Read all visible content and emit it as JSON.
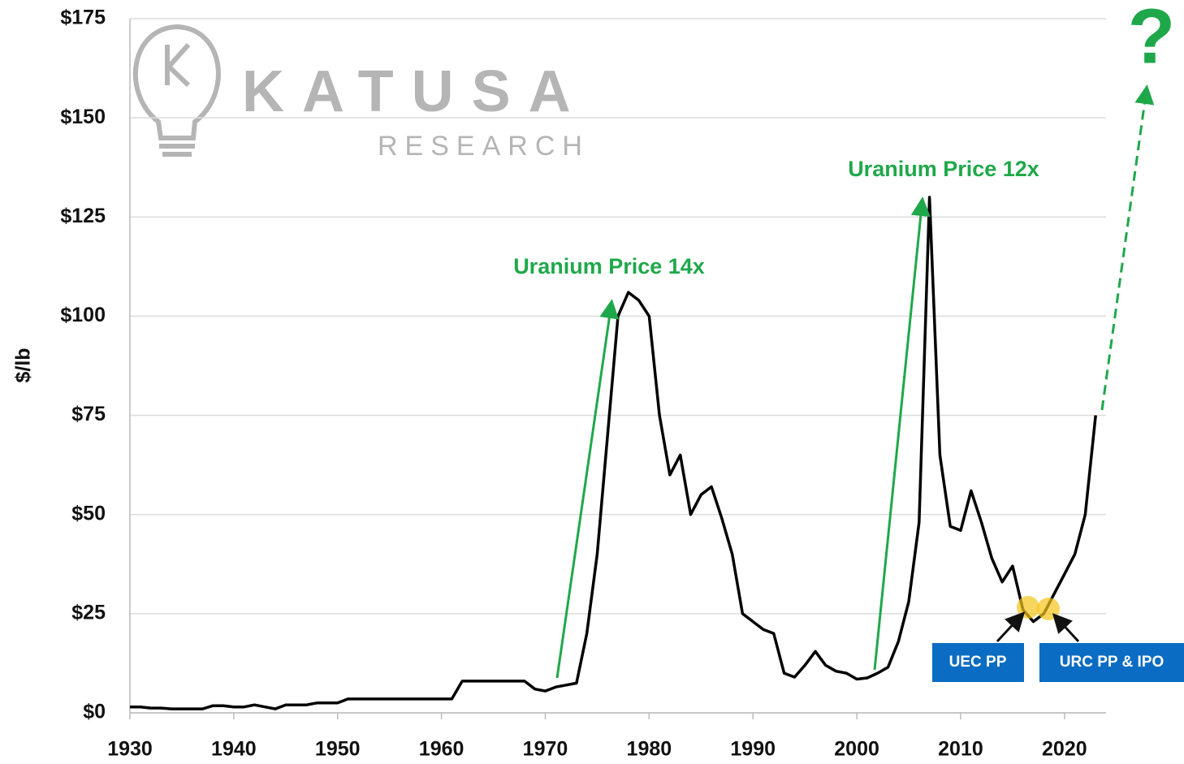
{
  "chart_data": {
    "type": "line",
    "y_label": "$/lb",
    "watermark": [
      "KATUSA",
      "RESEARCH"
    ],
    "annotations": [
      "Uranium Price 14x",
      "Uranium Price 12x",
      "?",
      "UEC PP",
      "URC PP & IPO"
    ],
    "color": "#000000",
    "grid": true,
    "xlim": [
      1930,
      2024
    ],
    "xticks": [
      1930,
      1940,
      1950,
      1960,
      1970,
      1980,
      1990,
      2000,
      2010,
      2020
    ],
    "ylim": [
      0,
      175
    ],
    "yticks": [
      {
        "value": 0,
        "label": "$0"
      },
      {
        "value": 25,
        "label": "$25"
      },
      {
        "value": 50,
        "label": "$50"
      },
      {
        "value": 75,
        "label": "$75"
      },
      {
        "value": 100,
        "label": "$100"
      },
      {
        "value": 125,
        "label": "$125"
      },
      {
        "value": 150,
        "label": "$150"
      },
      {
        "value": 175,
        "label": "$175"
      }
    ],
    "x": [
      1930,
      1931,
      1932,
      1933,
      1934,
      1935,
      1936,
      1937,
      1938,
      1939,
      1940,
      1941,
      1942,
      1943,
      1944,
      1945,
      1946,
      1947,
      1948,
      1949,
      1950,
      1951,
      1952,
      1953,
      1954,
      1955,
      1956,
      1957,
      1958,
      1959,
      1960,
      1961,
      1962,
      1963,
      1964,
      1965,
      1966,
      1967,
      1968,
      1969,
      1970,
      1971,
      1972,
      1973,
      1974,
      1975,
      1976,
      1977,
      1978,
      1979,
      1980,
      1981,
      1982,
      1983,
      1984,
      1985,
      1986,
      1987,
      1988,
      1989,
      1990,
      1991,
      1992,
      1993,
      1994,
      1995,
      1996,
      1997,
      1998,
      1999,
      2000,
      2001,
      2002,
      2003,
      2004,
      2005,
      2006,
      2007,
      2008,
      2009,
      2010,
      2011,
      2012,
      2013,
      2014,
      2015,
      2016,
      2017,
      2018,
      2019,
      2020,
      2021,
      2022,
      2023
    ],
    "values": [
      1.5,
      1.5,
      1.2,
      1.2,
      1,
      1,
      1,
      1,
      1.8,
      1.8,
      1.5,
      1.5,
      2,
      1.5,
      1,
      2,
      2,
      2,
      2.5,
      2.5,
      2.5,
      3.5,
      3.5,
      3.5,
      3.5,
      3.5,
      3.5,
      3.5,
      3.5,
      3.5,
      3.5,
      3.5,
      8,
      8,
      8,
      8,
      8,
      8,
      8,
      6,
      5.5,
      6.5,
      7,
      7.5,
      20,
      40,
      70,
      100,
      106,
      104,
      100,
      75,
      60,
      65,
      50,
      55,
      57,
      49,
      40,
      25,
      23,
      21,
      20,
      10,
      9,
      12,
      15.5,
      12,
      10.5,
      10,
      8.5,
      8.8,
      10,
      11.5,
      18,
      28,
      48,
      130,
      65,
      47,
      46,
      56,
      48,
      39,
      33,
      37,
      26,
      23,
      25,
      30,
      35,
      40,
      50,
      75
    ]
  }
}
